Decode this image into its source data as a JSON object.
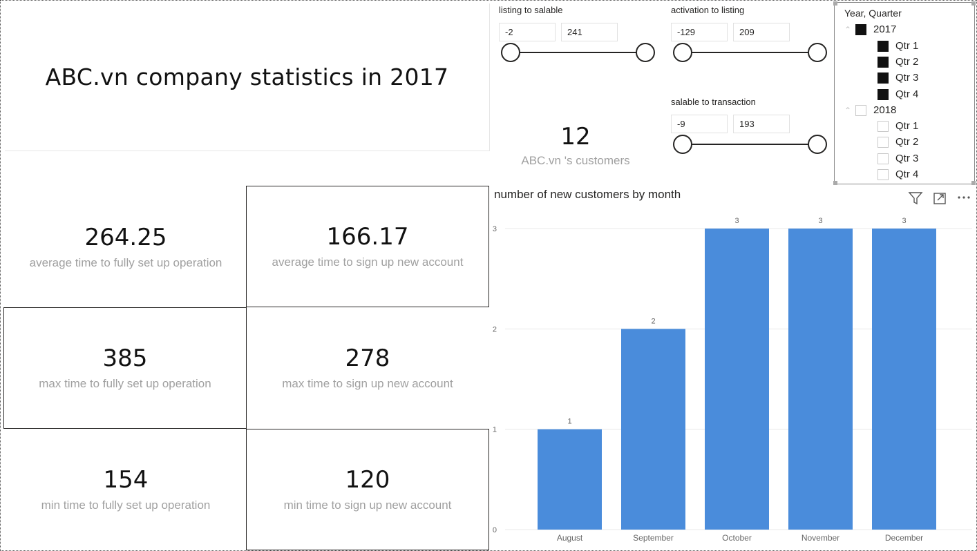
{
  "title": "ABC.vn company statistics in 2017",
  "customers": {
    "value": "12",
    "label": "ABC.vn 's customers"
  },
  "cards": [
    {
      "value": "264.25",
      "label": "average time to fully set up operation"
    },
    {
      "value": "166.17",
      "label": "average time to sign up new account"
    },
    {
      "value": "385",
      "label": "max time to fully set up operation"
    },
    {
      "value": "278",
      "label": "max time to sign up new account"
    },
    {
      "value": "154",
      "label": "min time to fully set up operation"
    },
    {
      "value": "120",
      "label": "min time to sign up new account"
    }
  ],
  "slicers": [
    {
      "title": "listing to salable",
      "min": "-2",
      "max": "241"
    },
    {
      "title": "activation to listing",
      "min": "-129",
      "max": "209"
    },
    {
      "title": "salable to transaction",
      "min": "-9",
      "max": "193"
    }
  ],
  "tree": {
    "title": "Year, Quarter",
    "years": [
      {
        "label": "2017",
        "checked": true,
        "quarters": [
          {
            "label": "Qtr 1",
            "checked": true
          },
          {
            "label": "Qtr 2",
            "checked": true
          },
          {
            "label": "Qtr 3",
            "checked": true
          },
          {
            "label": "Qtr 4",
            "checked": true
          }
        ]
      },
      {
        "label": "2018",
        "checked": false,
        "quarters": [
          {
            "label": "Qtr 1",
            "checked": false
          },
          {
            "label": "Qtr 2",
            "checked": false
          },
          {
            "label": "Qtr 3",
            "checked": false
          },
          {
            "label": "Qtr 4",
            "checked": false
          }
        ]
      }
    ]
  },
  "icons": {
    "filter": "filter-icon",
    "focus": "focus-mode-icon",
    "more": "more-options-icon"
  },
  "colors": {
    "bar": "#4A8CDB",
    "accent": "#252423"
  },
  "chart_data": {
    "type": "bar",
    "title": "number of new customers by month",
    "categories": [
      "August",
      "September",
      "October",
      "November",
      "December"
    ],
    "values": [
      1,
      2,
      3,
      3,
      3
    ],
    "data_labels": [
      "1",
      "2",
      "3",
      "3",
      "3"
    ],
    "yticks": [
      "0",
      "1",
      "2",
      "3"
    ],
    "ylim": [
      0,
      3
    ],
    "grid": true
  }
}
